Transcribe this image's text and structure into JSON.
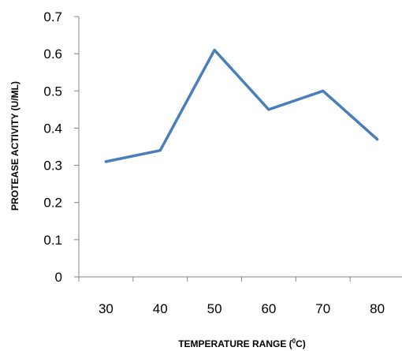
{
  "chart_data": {
    "type": "line",
    "categories": [
      "30",
      "40",
      "50",
      "60",
      "70",
      "80"
    ],
    "series": [
      {
        "values": [
          0.31,
          0.34,
          0.61,
          0.45,
          0.5,
          0.37
        ],
        "color": "#4a7ebb"
      }
    ],
    "ylim": [
      0,
      0.7
    ],
    "yticks": [
      "0",
      "0.1",
      "0.2",
      "0.3",
      "0.4",
      "0.5",
      "0.6",
      "0.7"
    ],
    "xlabel_main": "TEMPERATURE RANGE  (",
    "xlabel_sup": "0",
    "xlabel_end": "C)",
    "ylabel": "PROTEASE ACTIVITY (U/ML)",
    "grid": false,
    "legend": "none"
  }
}
